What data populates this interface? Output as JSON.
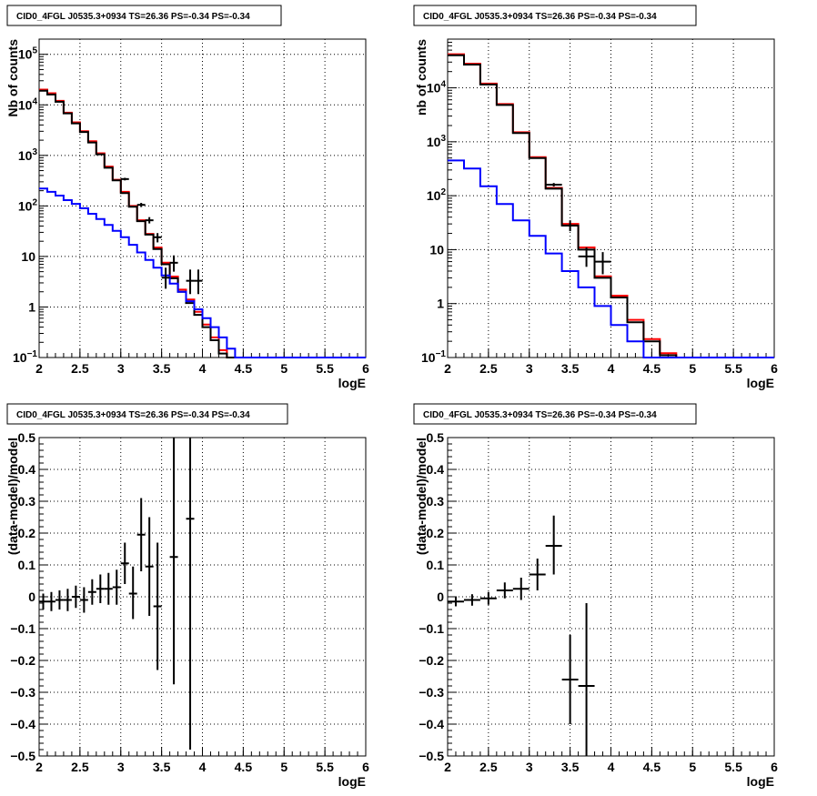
{
  "chart_data": [
    {
      "type": "line",
      "title": "CID0_4FGL J0535.3+0934 TS=26.36 PS=-0.34 PS=-0.34",
      "xlabel": "logE",
      "ylabel": "Nb of counts",
      "xlim": [
        2,
        6
      ],
      "ylim": [
        0.1,
        200000
      ],
      "log_y": true,
      "grid": true,
      "xticks": [
        "2",
        "2.5",
        "3",
        "3.5",
        "4",
        "4.5",
        "5",
        "5.5",
        "6"
      ],
      "yticks": [
        {
          "value": 0.1,
          "label": "10",
          "sup": "−1"
        },
        {
          "value": 1,
          "label": "1",
          "sup": ""
        },
        {
          "value": 10,
          "label": "10",
          "sup": ""
        },
        {
          "value": 100,
          "label": "10",
          "sup": "2"
        },
        {
          "value": 1000,
          "label": "10",
          "sup": "3"
        },
        {
          "value": 10000,
          "label": "10",
          "sup": "4"
        },
        {
          "value": 100000,
          "label": "10",
          "sup": "5"
        }
      ],
      "bin_edges": [
        2.0,
        2.1,
        2.2,
        2.3,
        2.4,
        2.5,
        2.6,
        2.7,
        2.8,
        2.9,
        3.0,
        3.1,
        3.2,
        3.3,
        3.4,
        3.5,
        3.6,
        3.7,
        3.8,
        3.9,
        4.0,
        4.1,
        4.2,
        4.3,
        4.4,
        4.5,
        4.6,
        4.7,
        4.8,
        4.9,
        5.0,
        5.1,
        5.2,
        5.3,
        5.4,
        5.5,
        5.6,
        5.7,
        5.8,
        5.9,
        6.0
      ],
      "series": [
        {
          "color": "#ff0000",
          "step_values": [
            20000,
            17000,
            12000,
            7000,
            4500,
            3000,
            1900,
            1100,
            600,
            330,
            190,
            100,
            52,
            28,
            15,
            7.5,
            4,
            2.2,
            1.4,
            0.8,
            0.45,
            0.25,
            0.14,
            0.1,
            0.1,
            0.1,
            0.1,
            0.1,
            0.1,
            0.1,
            0.1,
            0.1,
            0.1,
            0.1,
            0.1,
            0.1,
            0.1,
            0.1,
            0.1,
            0.1
          ]
        },
        {
          "color": "#000000",
          "step_values": [
            19000,
            16000,
            11500,
            6800,
            4300,
            2900,
            1800,
            1050,
            570,
            320,
            180,
            96,
            50,
            27,
            14,
            7,
            3.7,
            2,
            1.2,
            0.7,
            0.4,
            0.22,
            0.12,
            0.1,
            0.1,
            0.1,
            0.1,
            0.1,
            0.1,
            0.1,
            0.1,
            0.1,
            0.1,
            0.1,
            0.1,
            0.1,
            0.1,
            0.1,
            0.1,
            0.1
          ]
        },
        {
          "color": "#0000ff",
          "step_values": [
            220,
            190,
            160,
            130,
            110,
            90,
            70,
            55,
            42,
            32,
            24,
            17,
            12,
            8.5,
            6,
            4.2,
            2.9,
            2,
            1.3,
            0.9,
            0.6,
            0.4,
            0.25,
            0.15,
            0.1,
            0.1,
            0.1,
            0.1,
            0.1,
            0.1,
            0.1,
            0.1,
            0.1,
            0.1,
            0.1,
            0.1,
            0.1,
            0.1,
            0.1,
            0.1
          ]
        }
      ],
      "points": [
        {
          "x": 3.05,
          "y": 340,
          "xerr": 0.05,
          "ylo": 320,
          "yhi": 360
        },
        {
          "x": 3.25,
          "y": 105,
          "xerr": 0.05,
          "ylo": 95,
          "yhi": 115
        },
        {
          "x": 3.35,
          "y": 52,
          "xerr": 0.05,
          "ylo": 45,
          "yhi": 60
        },
        {
          "x": 3.45,
          "y": 24,
          "xerr": 0.05,
          "ylo": 19,
          "yhi": 29
        },
        {
          "x": 3.55,
          "y": 3.8,
          "xerr": 0.05,
          "ylo": 2.3,
          "yhi": 6.0
        },
        {
          "x": 3.65,
          "y": 7.5,
          "xerr": 0.05,
          "ylo": 5.0,
          "yhi": 10.5
        },
        {
          "x": 3.85,
          "y": 3.3,
          "xerr": 0.05,
          "ylo": 1.8,
          "yhi": 5.5
        },
        {
          "x": 3.95,
          "y": 3.3,
          "xerr": 0.05,
          "ylo": 1.8,
          "yhi": 5.5
        }
      ]
    },
    {
      "type": "line",
      "title": "CID0_4FGL J0535.3+0934 TS=26.36 PS=-0.34 PS=-0.34",
      "xlabel": "logE",
      "ylabel": "nb of counts",
      "xlim": [
        2,
        6
      ],
      "ylim": [
        0.1,
        80000
      ],
      "log_y": true,
      "grid": true,
      "xticks": [
        "2",
        "2.5",
        "3",
        "3.5",
        "4",
        "4.5",
        "5",
        "5.5",
        "6"
      ],
      "yticks": [
        {
          "value": 0.1,
          "label": "10",
          "sup": "−1"
        },
        {
          "value": 1,
          "label": "1",
          "sup": ""
        },
        {
          "value": 10,
          "label": "10",
          "sup": ""
        },
        {
          "value": 100,
          "label": "10",
          "sup": "2"
        },
        {
          "value": 1000,
          "label": "10",
          "sup": "3"
        },
        {
          "value": 10000,
          "label": "10",
          "sup": "4"
        }
      ],
      "bin_edges": [
        2.0,
        2.2,
        2.4,
        2.6,
        2.8,
        3.0,
        3.2,
        3.4,
        3.6,
        3.8,
        4.0,
        4.2,
        4.4,
        4.6,
        4.8,
        5.0,
        5.2,
        5.4,
        5.6,
        5.8,
        6.0
      ],
      "series": [
        {
          "color": "#ff0000",
          "step_values": [
            42000,
            28000,
            12000,
            5000,
            1500,
            520,
            140,
            30,
            11,
            3.2,
            1.4,
            0.5,
            0.22,
            0.12,
            0.1,
            0.1,
            0.1,
            0.1,
            0.1,
            0.1
          ]
        },
        {
          "color": "#000000",
          "step_values": [
            40000,
            27000,
            11500,
            4800,
            1450,
            500,
            135,
            28,
            10,
            3.0,
            1.3,
            0.45,
            0.2,
            0.11,
            0.1,
            0.1,
            0.1,
            0.1,
            0.1,
            0.1
          ]
        },
        {
          "color": "#0000ff",
          "step_values": [
            450,
            320,
            150,
            70,
            35,
            18,
            8.5,
            4,
            2,
            0.9,
            0.4,
            0.2,
            0.1,
            0.1,
            0.1,
            0.1,
            0.1,
            0.1,
            0.1,
            0.1
          ]
        }
      ],
      "points": [
        {
          "x": 3.3,
          "y": 160,
          "xerr": 0.1,
          "ylo": 148,
          "yhi": 172
        },
        {
          "x": 3.5,
          "y": 28,
          "xerr": 0.1,
          "ylo": 22,
          "yhi": 35
        },
        {
          "x": 3.7,
          "y": 7.5,
          "xerr": 0.1,
          "ylo": 4.8,
          "yhi": 11
        },
        {
          "x": 3.9,
          "y": 6.0,
          "xerr": 0.1,
          "ylo": 3.5,
          "yhi": 9.0
        }
      ]
    },
    {
      "type": "scatter",
      "title": "CID0_4FGL J0535.3+0934 TS=26.36 PS=-0.34 PS=-0.34",
      "xlabel": "logE",
      "ylabel": "(data-model)/model",
      "xlim": [
        2,
        6
      ],
      "ylim": [
        -0.5,
        0.5
      ],
      "grid": true,
      "xticks": [
        "2",
        "2.5",
        "3",
        "3.5",
        "4",
        "4.5",
        "5",
        "5.5",
        "6"
      ],
      "yticks": [
        "−0.5",
        "−0.4",
        "−0.3",
        "−0.2",
        "−0.1",
        "0",
        "0.1",
        "0.2",
        "0.3",
        "0.4",
        "0.5"
      ],
      "points": [
        {
          "x": 2.05,
          "y": -0.015,
          "xerr": 0.05,
          "ylo": -0.04,
          "yhi": 0.01
        },
        {
          "x": 2.15,
          "y": -0.015,
          "xerr": 0.05,
          "ylo": -0.045,
          "yhi": 0.015
        },
        {
          "x": 2.25,
          "y": -0.01,
          "xerr": 0.05,
          "ylo": -0.04,
          "yhi": 0.02
        },
        {
          "x": 2.35,
          "y": -0.01,
          "xerr": 0.05,
          "ylo": -0.045,
          "yhi": 0.025
        },
        {
          "x": 2.45,
          "y": 0.0,
          "xerr": 0.05,
          "ylo": -0.035,
          "yhi": 0.035
        },
        {
          "x": 2.55,
          "y": -0.01,
          "xerr": 0.05,
          "ylo": -0.05,
          "yhi": 0.03
        },
        {
          "x": 2.65,
          "y": 0.015,
          "xerr": 0.05,
          "ylo": -0.025,
          "yhi": 0.055
        },
        {
          "x": 2.75,
          "y": 0.025,
          "xerr": 0.05,
          "ylo": -0.02,
          "yhi": 0.07
        },
        {
          "x": 2.85,
          "y": 0.025,
          "xerr": 0.05,
          "ylo": -0.025,
          "yhi": 0.075
        },
        {
          "x": 2.95,
          "y": 0.03,
          "xerr": 0.05,
          "ylo": -0.025,
          "yhi": 0.085
        },
        {
          "x": 3.05,
          "y": 0.105,
          "xerr": 0.05,
          "ylo": 0.04,
          "yhi": 0.17
        },
        {
          "x": 3.15,
          "y": 0.01,
          "xerr": 0.05,
          "ylo": -0.07,
          "yhi": 0.095
        },
        {
          "x": 3.25,
          "y": 0.195,
          "xerr": 0.05,
          "ylo": 0.08,
          "yhi": 0.31
        },
        {
          "x": 3.35,
          "y": 0.095,
          "xerr": 0.05,
          "ylo": -0.06,
          "yhi": 0.25
        },
        {
          "x": 3.45,
          "y": -0.03,
          "xerr": 0.05,
          "ylo": -0.23,
          "yhi": 0.17
        },
        {
          "x": 3.65,
          "y": 0.125,
          "xerr": 0.05,
          "ylo": -0.275,
          "yhi": 0.5
        },
        {
          "x": 3.85,
          "y": 0.245,
          "xerr": 0.05,
          "ylo": -0.48,
          "yhi": 0.5
        }
      ]
    },
    {
      "type": "scatter",
      "title": "CID0_4FGL J0535.3+0934 TS=26.36 PS=-0.34 PS=-0.34",
      "xlabel": "logE",
      "ylabel": "(data-model)/model",
      "xlim": [
        2,
        6
      ],
      "ylim": [
        -0.5,
        0.5
      ],
      "grid": true,
      "xticks": [
        "2",
        "2.5",
        "3",
        "3.5",
        "4",
        "4.5",
        "5",
        "5.5",
        "6"
      ],
      "yticks": [
        "−0.5",
        "−0.4",
        "−0.3",
        "−0.2",
        "−0.1",
        "0",
        "0.1",
        "0.2",
        "0.3",
        "0.4",
        "0.5"
      ],
      "points": [
        {
          "x": 2.1,
          "y": -0.015,
          "xerr": 0.1,
          "ylo": -0.03,
          "yhi": 0.0
        },
        {
          "x": 2.3,
          "y": -0.01,
          "xerr": 0.1,
          "ylo": -0.028,
          "yhi": 0.008
        },
        {
          "x": 2.5,
          "y": -0.005,
          "xerr": 0.1,
          "ylo": -0.025,
          "yhi": 0.015
        },
        {
          "x": 2.7,
          "y": 0.02,
          "xerr": 0.1,
          "ylo": -0.005,
          "yhi": 0.045
        },
        {
          "x": 2.9,
          "y": 0.025,
          "xerr": 0.1,
          "ylo": -0.01,
          "yhi": 0.06
        },
        {
          "x": 3.1,
          "y": 0.07,
          "xerr": 0.1,
          "ylo": 0.02,
          "yhi": 0.12
        },
        {
          "x": 3.3,
          "y": 0.16,
          "xerr": 0.1,
          "ylo": 0.07,
          "yhi": 0.255
        },
        {
          "x": 3.5,
          "y": -0.26,
          "xerr": 0.1,
          "ylo": -0.4,
          "yhi": -0.12
        },
        {
          "x": 3.7,
          "y": -0.28,
          "xerr": 0.1,
          "ylo": -0.53,
          "yhi": -0.02
        }
      ]
    }
  ]
}
